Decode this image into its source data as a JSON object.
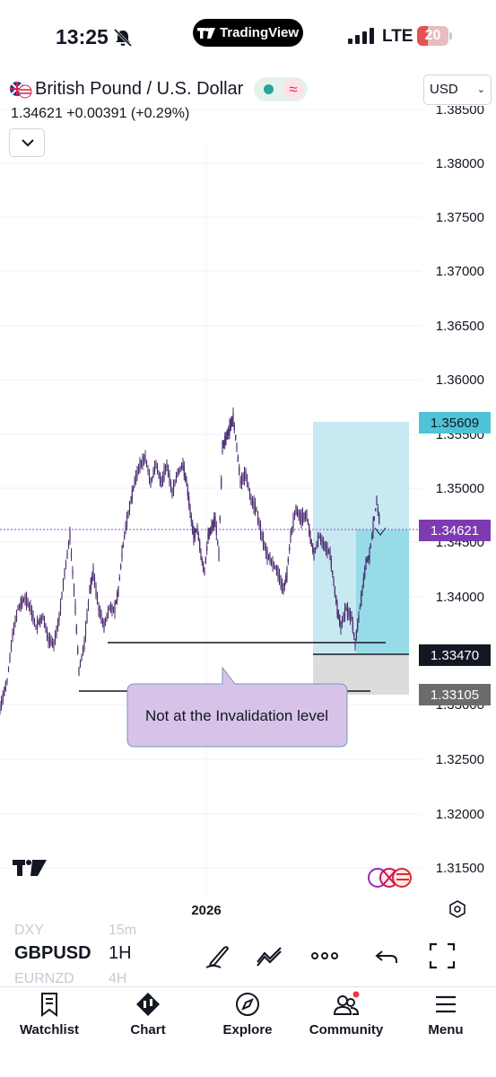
{
  "status_bar": {
    "time": "13:25",
    "app_pill": "TradingView",
    "network": "LTE",
    "battery": "20"
  },
  "header": {
    "symbol_name": "British Pound / U.S. Dollar",
    "currency": "USD",
    "price_line": "1.34621 +0.00391 (+0.29%)",
    "delayed_symbol": "≈"
  },
  "chart": {
    "y_axis_labels": [
      "1.38500",
      "1.38000",
      "1.37500",
      "1.37000",
      "1.36500",
      "1.36000",
      "1.35500",
      "1.35000",
      "1.34500",
      "1.34000",
      "1.33000",
      "1.32500",
      "1.32000",
      "1.31500"
    ],
    "x_axis_label": "2026",
    "price_tags": {
      "target": "1.35609",
      "current": "1.34621",
      "entry": "1.33470",
      "stop": "1.33105"
    },
    "callout": "Not at the Invalidation level",
    "colors": {
      "candle": "#4a2a6e",
      "target_zone": "#c8e9f1",
      "stop_zone": "#dcdcdc",
      "current_tag": "#7e3ab0",
      "target_tag": "#4fc3d7",
      "callout_fill": "#d7c3e8"
    }
  },
  "toolbar": {
    "symbol": "GBPUSD",
    "interval": "1H",
    "ghost_above_symbol": "DXY",
    "ghost_above_interval": "15m",
    "ghost_below_symbol": "EURNZD",
    "ghost_below_interval": "4H",
    "icons": [
      "pencil-icon",
      "trend-line-icon",
      "more-icon",
      "undo-icon",
      "fullscreen-icon"
    ]
  },
  "tabs": [
    {
      "label": "Watchlist",
      "icon": "bookmark-icon"
    },
    {
      "label": "Chart",
      "icon": "chart-icon"
    },
    {
      "label": "Explore",
      "icon": "compass-icon"
    },
    {
      "label": "Community",
      "icon": "community-icon"
    },
    {
      "label": "Menu",
      "icon": "menu-icon"
    }
  ]
}
